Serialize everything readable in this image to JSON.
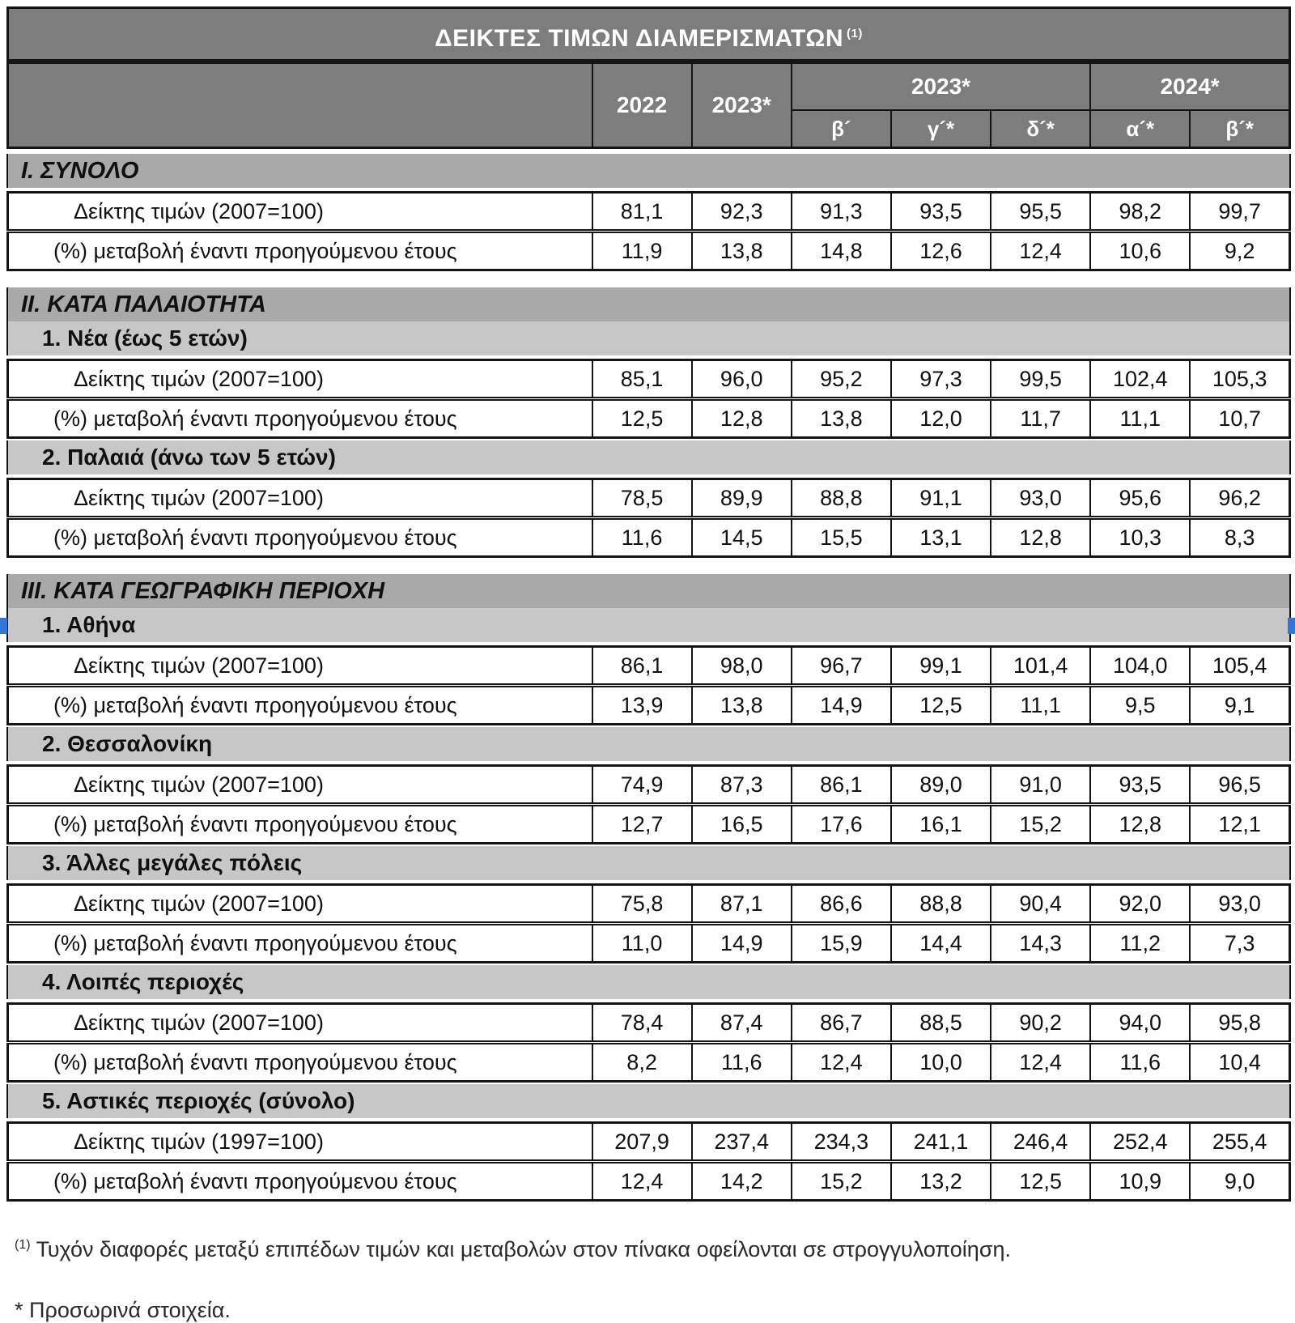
{
  "title": {
    "text": "ΔΕΙΚΤΕΣ ΤΙΜΩΝ ΔΙΑΜΕΡΙΣΜΑΤΩΝ",
    "footnote_ref": "(1)"
  },
  "header": {
    "col_2022": "2022",
    "col_2023": "2023*",
    "group_2023": "2023*",
    "group_2024": "2024*",
    "subcols_2023": [
      "β´",
      "γ´*",
      "δ´*"
    ],
    "subcols_2024": [
      "α´*",
      "β´*"
    ]
  },
  "sections": [
    {
      "title": "Ι. ΣΥΝΟΛΟ",
      "groups": [
        {
          "subtitle": null,
          "rows": [
            {
              "label": "Δείκτης τιμών (2007=100)",
              "values": [
                "81,1",
                "92,3",
                "91,3",
                "93,5",
                "95,5",
                "98,2",
                "99,7"
              ]
            },
            {
              "label": "(%) μεταβολή έναντι προηγούμενου έτους",
              "values": [
                "11,9",
                "13,8",
                "14,8",
                "12,6",
                "12,4",
                "10,6",
                "9,2"
              ]
            }
          ]
        }
      ]
    },
    {
      "title": "ΙΙ. ΚΑΤΑ ΠΑΛΑΙΟΤΗΤΑ",
      "groups": [
        {
          "subtitle": "1.  Νέα (έως 5 ετών)",
          "rows": [
            {
              "label": "Δείκτης τιμών (2007=100)",
              "values": [
                "85,1",
                "96,0",
                "95,2",
                "97,3",
                "99,5",
                "102,4",
                "105,3"
              ]
            },
            {
              "label": "(%) μεταβολή έναντι προηγούμενου έτους",
              "values": [
                "12,5",
                "12,8",
                "13,8",
                "12,0",
                "11,7",
                "11,1",
                "10,7"
              ]
            }
          ]
        },
        {
          "subtitle": "2. Παλαιά (άνω των 5 ετών)",
          "rows": [
            {
              "label": "Δείκτης τιμών (2007=100)",
              "values": [
                "78,5",
                "89,9",
                "88,8",
                "91,1",
                "93,0",
                "95,6",
                "96,2"
              ]
            },
            {
              "label": "(%) μεταβολή έναντι προηγούμενου έτους",
              "values": [
                "11,6",
                "14,5",
                "15,5",
                "13,1",
                "12,8",
                "10,3",
                "8,3"
              ]
            }
          ]
        }
      ]
    },
    {
      "title": "ΙΙΙ. ΚΑΤΑ ΓΕΩΓΡΑΦΙΚΗ ΠΕΡΙΟΧΗ",
      "groups": [
        {
          "subtitle": "1.  Αθήνα",
          "rows": [
            {
              "label": "Δείκτης τιμών (2007=100)",
              "values": [
                "86,1",
                "98,0",
                "96,7",
                "99,1",
                "101,4",
                "104,0",
                "105,4"
              ]
            },
            {
              "label": "(%) μεταβολή έναντι προηγούμενου έτους",
              "values": [
                "13,9",
                "13,8",
                "14,9",
                "12,5",
                "11,1",
                "9,5",
                "9,1"
              ]
            }
          ]
        },
        {
          "subtitle": "2.  Θεσσαλονίκη",
          "rows": [
            {
              "label": "Δείκτης τιμών (2007=100)",
              "values": [
                "74,9",
                "87,3",
                "86,1",
                "89,0",
                "91,0",
                "93,5",
                "96,5"
              ]
            },
            {
              "label": "(%) μεταβολή έναντι προηγούμενου έτους",
              "values": [
                "12,7",
                "16,5",
                "17,6",
                "16,1",
                "15,2",
                "12,8",
                "12,1"
              ]
            }
          ]
        },
        {
          "subtitle": "3.  Άλλες μεγάλες πόλεις",
          "rows": [
            {
              "label": "Δείκτης τιμών (2007=100)",
              "values": [
                "75,8",
                "87,1",
                "86,6",
                "88,8",
                "90,4",
                "92,0",
                "93,0"
              ]
            },
            {
              "label": "(%) μεταβολή έναντι προηγούμενου έτους",
              "values": [
                "11,0",
                "14,9",
                "15,9",
                "14,4",
                "14,3",
                "11,2",
                "7,3"
              ]
            }
          ]
        },
        {
          "subtitle": "4.  Λοιπές περιοχές",
          "rows": [
            {
              "label": "Δείκτης τιμών (2007=100)",
              "values": [
                "78,4",
                "87,4",
                "86,7",
                "88,5",
                "90,2",
                "94,0",
                "95,8"
              ]
            },
            {
              "label": "(%) μεταβολή έναντι προηγούμενου έτους",
              "values": [
                "8,2",
                "11,6",
                "12,4",
                "10,0",
                "12,4",
                "11,6",
                "10,4"
              ]
            }
          ]
        },
        {
          "subtitle": "5.  Αστικές περιοχές (σύνολο)",
          "rows": [
            {
              "label": "Δείκτης τιμών (1997=100)",
              "values": [
                "207,9",
                "237,4",
                "234,3",
                "241,1",
                "246,4",
                "252,4",
                "255,4"
              ]
            },
            {
              "label": "(%) μεταβολή έναντι προηγούμενου έτους",
              "values": [
                "12,4",
                "14,2",
                "15,2",
                "13,2",
                "12,5",
                "10,9",
                "9,0"
              ]
            }
          ]
        }
      ]
    }
  ],
  "footnotes": [
    {
      "marker": "(1)",
      "text": "Τυχόν διαφορές μεταξύ επιπέδων τιμών και μεταβολών στον πίνακα οφείλονται σε στρογγυλοποίηση."
    },
    {
      "marker": "*",
      "text": "Προσωρινά στοιχεία."
    }
  ],
  "colors": {
    "header_band": "#7d7d7d",
    "section_band": "#a9a9a9",
    "subsection_band": "#c7c7c7",
    "border": "#141414",
    "selection_handle": "#3575d3"
  }
}
